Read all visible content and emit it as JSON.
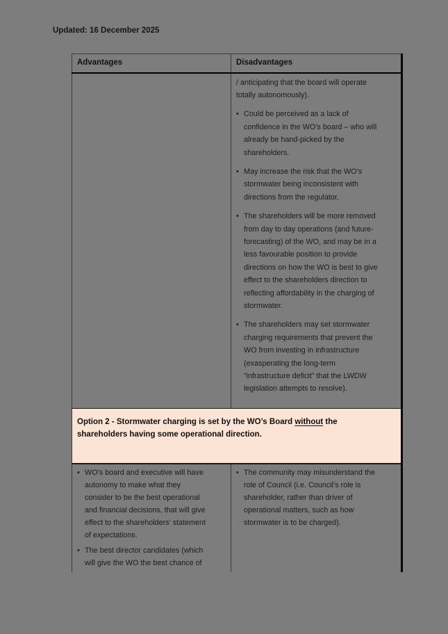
{
  "page": {
    "updated_label": "Updated: 16 December 2025"
  },
  "table": {
    "header": {
      "advantages": "Advantages",
      "disadvantages": "Disadvantages"
    },
    "section1": {
      "disadvantages_continuation": "/ anticipating that the board will operate\ntotally autonomously).",
      "disadvantages_items": [
        "Could be perceived as a lack of\nconfidence in the WO’s board – who will\nalready be hand-picked by the\nshareholders.",
        "May increase the risk that the WO’s\nstormwater being inconsistent with\ndirections from the regulator.",
        "The shareholders will be more removed\nfrom day to day operations (and future-\nforecasting) of the WO, and may be in a\nless favourable position to provide\ndirections on how the WO is best to give\neffect to the shareholders direction to\nreflecting affordability in the charging of\nstormwater.",
        "The shareholders may set stormwater\ncharging requirements that prevent the\nWO from investing in infrastructure\n(exasperating the long-term\n“infrastructure deficit” that the LWDW\nlegislation attempts to resolve)."
      ]
    },
    "option_row": {
      "text_before": "Option 2 - Stormwater charging is set by the WO’s Board ",
      "text_underlined": "without",
      "text_after": " the\nshareholders having some operational direction."
    },
    "section2": {
      "advantages_items": [
        "WO’s board and executive will have\nautonomy to make what they\nconsider to be the best operational\nand financial decisions, that will give\neffect to the shareholders’ statement\nof expectations.",
        "The best director candidates (which\nwill give the WO the best chance of"
      ],
      "disadvantages_items": [
        "The community may misunderstand the\nrole of Council (i.e. Council’s role is\nshareholder, rather than driver of\noperational matters, such as how\nstormwater is to be charged)."
      ]
    }
  },
  "colors": {
    "background": "#7d7d7d",
    "option_row_bg": "#fbe3d5",
    "text": "#1b1b1b",
    "border": "#000000"
  }
}
